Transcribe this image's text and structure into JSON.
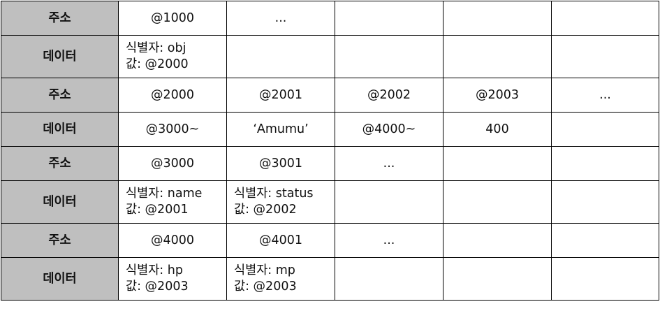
{
  "table": {
    "rows": [
      {
        "header": "주소",
        "cells": [
          {
            "lines": [
              "@1000"
            ]
          },
          {
            "lines": [
              "..."
            ]
          },
          {
            "lines": []
          },
          {
            "lines": []
          },
          {
            "lines": []
          }
        ]
      },
      {
        "header": "데이터",
        "cells": [
          {
            "lines": [
              "식별자: obj",
              "값: @2000"
            ]
          },
          {
            "lines": []
          },
          {
            "lines": []
          },
          {
            "lines": []
          },
          {
            "lines": []
          }
        ]
      },
      {
        "header": "주소",
        "cells": [
          {
            "lines": [
              "@2000"
            ]
          },
          {
            "lines": [
              "@2001"
            ]
          },
          {
            "lines": [
              "@2002"
            ]
          },
          {
            "lines": [
              "@2003"
            ]
          },
          {
            "lines": [
              "..."
            ]
          }
        ]
      },
      {
        "header": "데이터",
        "cells": [
          {
            "lines": [
              "@3000~"
            ]
          },
          {
            "lines": [
              "‘Amumu’"
            ]
          },
          {
            "lines": [
              "@4000~"
            ]
          },
          {
            "lines": [
              "400"
            ]
          },
          {
            "lines": []
          }
        ]
      },
      {
        "header": "주소",
        "cells": [
          {
            "lines": [
              "@3000"
            ]
          },
          {
            "lines": [
              "@3001"
            ]
          },
          {
            "lines": [
              "..."
            ]
          },
          {
            "lines": []
          },
          {
            "lines": []
          }
        ]
      },
      {
        "header": "데이터",
        "cells": [
          {
            "lines": [
              "식별자: name",
              "값: @2001"
            ]
          },
          {
            "lines": [
              "식별자: status",
              "값: @2002"
            ]
          },
          {
            "lines": []
          },
          {
            "lines": []
          },
          {
            "lines": []
          }
        ]
      },
      {
        "header": "주소",
        "cells": [
          {
            "lines": [
              "@4000"
            ]
          },
          {
            "lines": [
              "@4001"
            ]
          },
          {
            "lines": [
              "..."
            ]
          },
          {
            "lines": []
          },
          {
            "lines": []
          }
        ]
      },
      {
        "header": "데이터",
        "cells": [
          {
            "lines": [
              "식별자: hp",
              "값: @2003"
            ]
          },
          {
            "lines": [
              "식별자: mp",
              "값: @2003"
            ]
          },
          {
            "lines": []
          },
          {
            "lines": []
          },
          {
            "lines": []
          }
        ]
      }
    ]
  },
  "colors": {
    "header_fill": "#bfbfbf",
    "border": "#000000",
    "text": "#111111"
  }
}
